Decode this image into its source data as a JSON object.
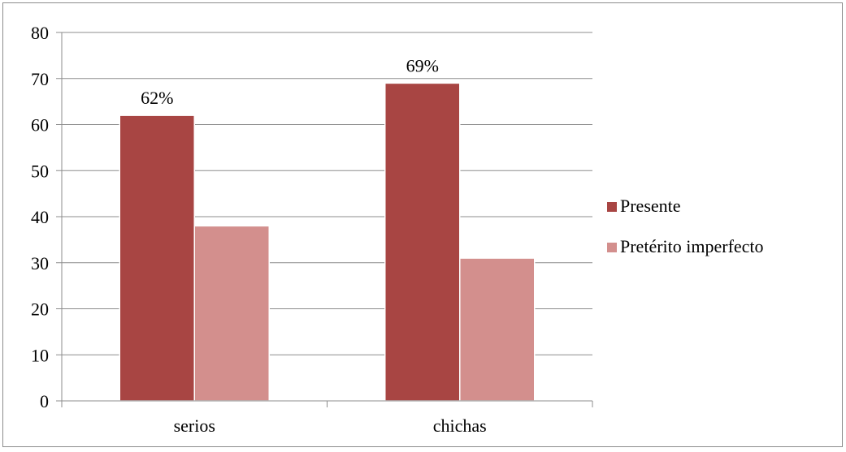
{
  "chart_data": {
    "type": "bar",
    "categories": [
      "serios",
      "chichas"
    ],
    "series": [
      {
        "name": "Presente",
        "values": [
          62,
          69
        ],
        "color": "#a84543",
        "data_labels": [
          "62%",
          "69%"
        ]
      },
      {
        "name": "Pretérito imperfecto",
        "values": [
          38,
          31
        ],
        "color": "#d38f8d",
        "data_labels": [
          "",
          ""
        ]
      }
    ],
    "title": "",
    "xlabel": "",
    "ylabel": "",
    "ylim": [
      0,
      80
    ],
    "yticks": [
      0,
      10,
      20,
      30,
      40,
      50,
      60,
      70,
      80
    ],
    "grid": true,
    "legend_position": "right"
  }
}
